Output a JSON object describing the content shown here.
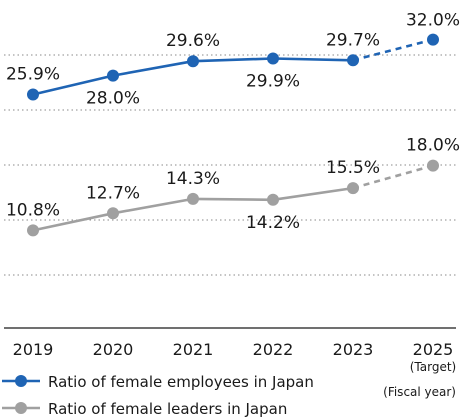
{
  "chart_data": {
    "type": "line",
    "x": [
      "2019",
      "2020",
      "2021",
      "2022",
      "2023",
      "2025"
    ],
    "x_sublabels": [
      "",
      "",
      "",
      "",
      "",
      "(Target)"
    ],
    "x_note": "(Fiscal year)",
    "ylim": [
      0,
      36
    ],
    "grid": true,
    "legend_position": "bottom-left",
    "series": [
      {
        "name": "Ratio of female employees in Japan",
        "color": "#1f64b4",
        "values": [
          25.9,
          28.0,
          29.6,
          29.9,
          29.7,
          32.0
        ],
        "labels": [
          "25.9%",
          "28.0%",
          "29.6%",
          "29.9%",
          "29.7%",
          "32.0%"
        ],
        "last_segment": "dashed (target)"
      },
      {
        "name": "Ratio of female leaders in Japan",
        "color": "#a0a0a0",
        "values": [
          10.8,
          12.7,
          14.3,
          14.2,
          15.5,
          18.0
        ],
        "labels": [
          "10.8%",
          "12.7%",
          "14.3%",
          "14.2%",
          "15.5%",
          "18.0%"
        ],
        "last_segment": "dashed (target)"
      }
    ]
  }
}
